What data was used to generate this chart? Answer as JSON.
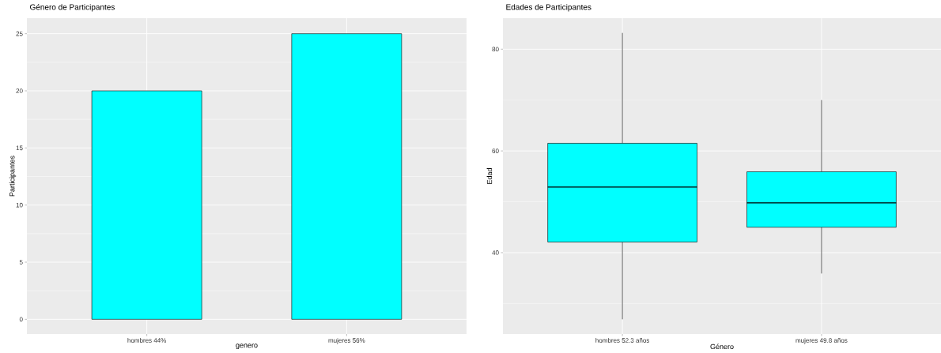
{
  "chart_data": [
    {
      "type": "bar",
      "title": "Género de Participantes",
      "xlabel": "genero",
      "ylabel": "Participantes",
      "categories": [
        "hombres 44%",
        "mujeres 56%"
      ],
      "values": [
        20,
        25
      ],
      "color": "#00ffff",
      "ylim": [
        -1.29,
        26.36
      ],
      "yticks": [
        0,
        5,
        10,
        15,
        20,
        25
      ],
      "grid": true
    },
    {
      "type": "box",
      "title": "Edades de Participantes",
      "xlabel": "Género",
      "ylabel": "Edad",
      "categories": [
        "hombres 52.3 años",
        "mujeres 49.8 años"
      ],
      "color": "#00ffff",
      "boxes": [
        {
          "low": 26.9,
          "q1": 42.1,
          "median": 52.9,
          "q3": 61.5,
          "high": 83.2
        },
        {
          "low": 35.9,
          "q1": 45.0,
          "median": 49.8,
          "q3": 55.9,
          "high": 70.0
        }
      ],
      "ylim": [
        24.0,
        86.1
      ],
      "yticks": [
        40,
        60,
        80
      ],
      "grid": true
    }
  ]
}
